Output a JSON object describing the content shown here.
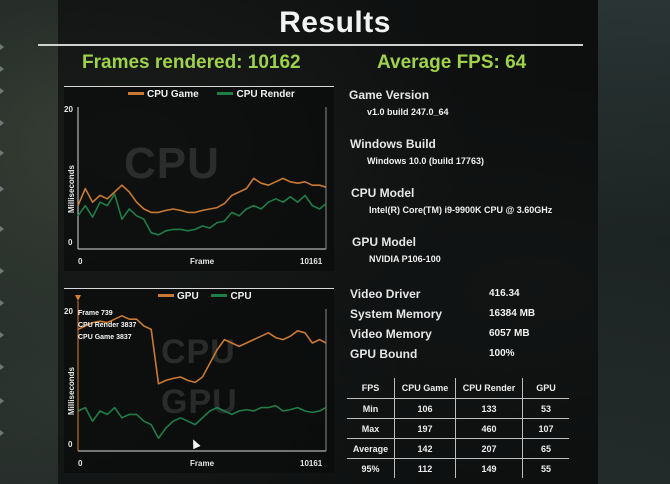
{
  "title": "Results",
  "summary": {
    "frames_rendered": "Frames rendered: 10162",
    "average_fps": "Average FPS: 64"
  },
  "colors": {
    "orange": "#c97932",
    "green": "#1f7d48",
    "summary_green": "#9fd24a"
  },
  "chart_cpu": {
    "watermark": "CPU",
    "legend": [
      "CPU Game",
      "CPU Render"
    ],
    "y_top": "20",
    "y_bottom": "0",
    "ylabel": "Milliseconds",
    "x_start": "0",
    "x_end": "10161",
    "xlabel": "Frame"
  },
  "chart_gpu": {
    "watermark1": "CPU",
    "watermark2": "GPU",
    "legend": [
      "GPU",
      "CPU"
    ],
    "y_top": "20",
    "y_bottom": "0",
    "ylabel": "Milliseconds",
    "x_start": "0",
    "x_end": "10161",
    "xlabel": "Frame",
    "hover": [
      "Frame 739",
      "CPU Render 3837",
      "CPU Game 3837"
    ]
  },
  "chart_data": [
    {
      "type": "line",
      "title": "",
      "xlabel": "Frame",
      "ylabel": "Milliseconds",
      "xlim": [
        0,
        10161
      ],
      "ylim": [
        0,
        20
      ],
      "x": [
        0,
        300,
        600,
        900,
        1200,
        1500,
        1800,
        2100,
        2400,
        2700,
        3000,
        3300,
        3600,
        3900,
        4200,
        4500,
        4800,
        5100,
        5400,
        5700,
        6000,
        6300,
        6600,
        6900,
        7200,
        7500,
        7800,
        8100,
        8400,
        8700,
        9000,
        9300,
        9600,
        9900,
        10161
      ],
      "series": [
        {
          "name": "CPU Game",
          "color": "#c97932",
          "values": [
            5.5,
            8.0,
            6.0,
            7.0,
            6.5,
            7.5,
            8.5,
            7.5,
            6.0,
            5.0,
            4.5,
            4.5,
            4.8,
            5.0,
            4.8,
            4.5,
            4.5,
            4.8,
            5.0,
            5.2,
            5.8,
            7.0,
            7.5,
            8.0,
            9.5,
            8.8,
            8.5,
            9.0,
            9.5,
            9.0,
            8.8,
            9.0,
            8.5,
            8.5,
            8.2
          ]
        },
        {
          "name": "CPU Render",
          "color": "#1f7d48",
          "values": [
            4.0,
            5.5,
            3.8,
            6.0,
            5.5,
            7.2,
            3.5,
            5.0,
            4.0,
            3.5,
            1.5,
            1.2,
            1.8,
            2.0,
            2.0,
            1.8,
            2.0,
            2.5,
            2.2,
            3.0,
            3.2,
            4.5,
            4.0,
            5.0,
            5.5,
            5.0,
            6.0,
            6.5,
            6.0,
            6.8,
            6.0,
            7.0,
            5.5,
            5.0,
            5.8
          ]
        }
      ]
    },
    {
      "type": "line",
      "title": "",
      "xlabel": "Frame",
      "ylabel": "Milliseconds",
      "xlim": [
        0,
        10161
      ],
      "ylim": [
        0,
        20
      ],
      "x": [
        0,
        300,
        600,
        900,
        1200,
        1500,
        1800,
        2100,
        2400,
        2700,
        3000,
        3300,
        3600,
        3900,
        4200,
        4500,
        4800,
        5100,
        5400,
        5700,
        6000,
        6300,
        6600,
        6900,
        7200,
        7500,
        7800,
        8100,
        8400,
        8700,
        9000,
        9300,
        9600,
        9900,
        10161
      ],
      "series": [
        {
          "name": "GPU",
          "color": "#c97932",
          "values": [
            17.0,
            17.5,
            18.0,
            18.2,
            18.0,
            18.5,
            19.0,
            18.5,
            18.5,
            17.5,
            17.0,
            9.0,
            9.5,
            9.8,
            10.0,
            9.5,
            9.2,
            10.0,
            12.0,
            14.0,
            15.5,
            15.0,
            14.5,
            15.0,
            15.5,
            16.0,
            16.5,
            15.8,
            15.5,
            16.0,
            16.8,
            16.5,
            15.0,
            15.5,
            15.0
          ]
        },
        {
          "name": "CPU",
          "color": "#1f7d48",
          "values": [
            5.0,
            5.5,
            3.5,
            5.0,
            4.5,
            5.5,
            4.0,
            4.5,
            4.5,
            3.5,
            3.0,
            1.0,
            2.5,
            3.5,
            4.0,
            3.5,
            3.0,
            4.0,
            5.0,
            5.5,
            5.0,
            4.5,
            5.0,
            5.2,
            5.0,
            5.5,
            5.5,
            5.8,
            5.0,
            5.2,
            5.5,
            5.0,
            4.8,
            5.0,
            5.5
          ]
        }
      ]
    }
  ],
  "info": {
    "game_version": {
      "label": "Game Version",
      "value": "v1.0 build 247.0_64"
    },
    "windows_build": {
      "label": "Windows Build",
      "value": "Windows 10.0 (build 17763)"
    },
    "cpu_model": {
      "label": "CPU Model",
      "value": "Intel(R) Core(TM) i9-9900K CPU @ 3.60GHz"
    },
    "gpu_model": {
      "label": "GPU Model",
      "value": "NVIDIA P106-100"
    }
  },
  "stats": [
    {
      "label": "Video Driver",
      "value": "416.34"
    },
    {
      "label": "System Memory",
      "value": "16384 MB"
    },
    {
      "label": "Video Memory",
      "value": "6057 MB"
    },
    {
      "label": "GPU Bound",
      "value": "100%"
    }
  ],
  "fps_table": {
    "headers": [
      "FPS",
      "CPU Game",
      "CPU Render",
      "GPU"
    ],
    "rows": [
      [
        "Min",
        "106",
        "133",
        "53"
      ],
      [
        "Max",
        "197",
        "460",
        "107"
      ],
      [
        "Average",
        "142",
        "207",
        "65"
      ],
      [
        "95%",
        "112",
        "149",
        "55"
      ]
    ]
  }
}
